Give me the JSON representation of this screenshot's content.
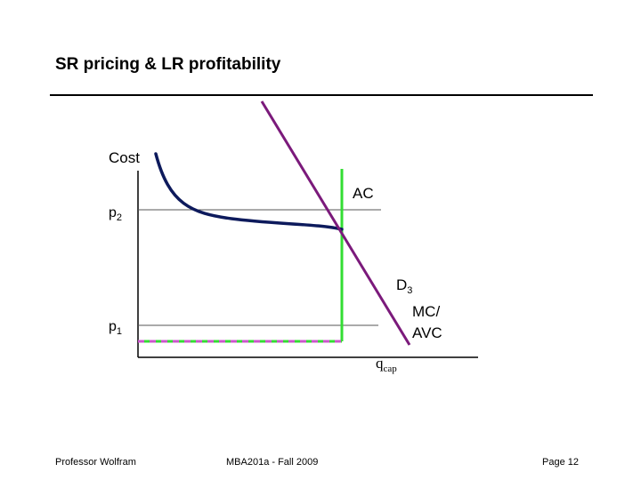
{
  "slide": {
    "title": "SR pricing & LR profitability",
    "footer_left": "Professor Wolfram",
    "footer_center": "MBA201a - Fall 2009",
    "footer_right": "Page 12"
  },
  "diagram": {
    "y_axis_label": "Cost",
    "p2_label": "p",
    "p2_sub": "2",
    "p1_label": "p",
    "p1_sub": "1",
    "ac_label": "AC",
    "d3_label": "D",
    "d3_sub": "3",
    "mc_label_line1": "MC/",
    "mc_label_line2": "AVC",
    "qcap_label": "q",
    "qcap_sub": "cap"
  },
  "colors": {
    "ac_curve": "#0d1a5c",
    "demand_curve": "#7b1a7b",
    "capacity_line": "#33dd33",
    "price_axis_dash": "#cc55cc",
    "axis": "#000000",
    "price_lines": "#555555"
  }
}
